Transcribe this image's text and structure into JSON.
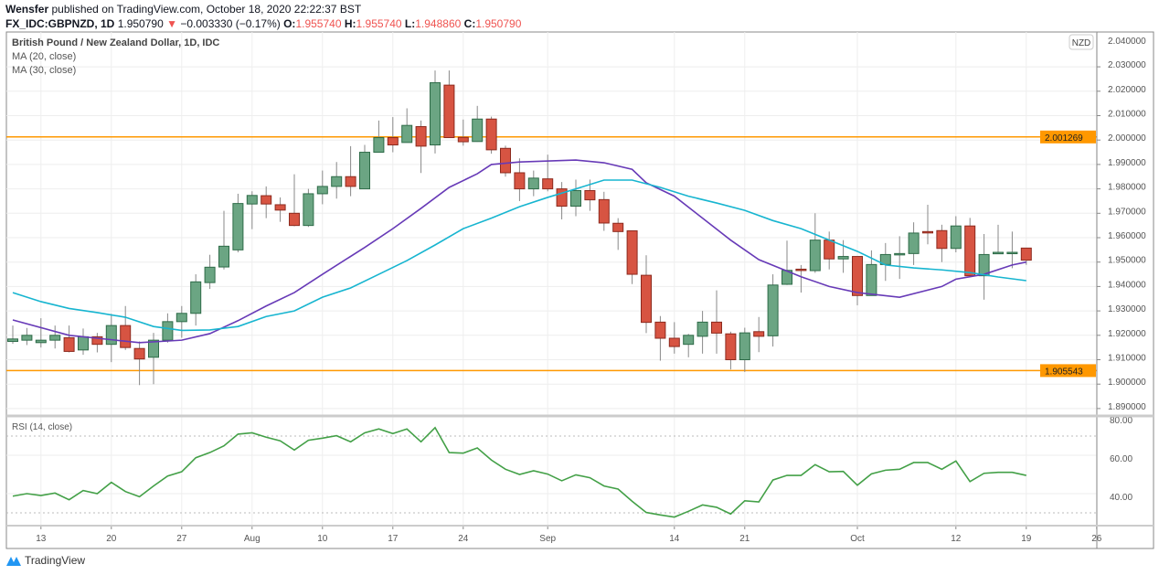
{
  "header": {
    "author": "Wensfer",
    "published": "published on TradingView.com, October 18, 2020 22:22:37 BST",
    "symbol": "FX_IDC:GBPNZD, 1D",
    "last": "1.950790",
    "change": "−0.003330 (−0.17%)",
    "o_label": "O:",
    "o": "1.955740",
    "h_label": "H:",
    "h": "1.955740",
    "l_label": "L:",
    "l": "1.948860",
    "c_label": "C:",
    "c": "1.950790",
    "down_icon": "triangle-down-icon"
  },
  "legend": {
    "title": "British Pound / New Zealand Dollar, 1D, IDC",
    "ma20": "MA (20, close)",
    "ma30": "MA (30, close)",
    "rsi": "RSI (14, close)"
  },
  "currency_badge": "NZD",
  "brand": "TradingView",
  "colors": {
    "up": "#6ba583",
    "down": "#d75442",
    "ma20": "#673ab7",
    "ma30": "#17b5d0",
    "rsi": "#43a047",
    "hline": "#ff9800"
  },
  "chart_data": {
    "type": "candlestick",
    "price_axis": {
      "ticks": [
        "2.030000",
        "2.020000",
        "2.010000",
        "2.000000",
        "1.990000",
        "1.980000",
        "1.970000",
        "1.960000",
        "1.950000",
        "1.940000",
        "1.930000",
        "1.920000",
        "1.910000",
        "1.900000",
        "1.890000"
      ],
      "top_tick": "2.040000"
    },
    "horizontal_lines": [
      {
        "value": 2.001269,
        "label": "2.001269"
      },
      {
        "value": 1.905543,
        "label": "1.905543"
      }
    ],
    "time_axis": [
      {
        "label": "13",
        "date": "07-13"
      },
      {
        "label": "20",
        "date": "07-20"
      },
      {
        "label": "27",
        "date": "07-27"
      },
      {
        "label": "Aug",
        "date": "08-03"
      },
      {
        "label": "10",
        "date": "08-10"
      },
      {
        "label": "17",
        "date": "08-17"
      },
      {
        "label": "24",
        "date": "08-24"
      },
      {
        "label": "Sep",
        "date": "09-01"
      },
      {
        "label": "14",
        "date": "09-14"
      },
      {
        "label": "21",
        "date": "09-21"
      },
      {
        "label": "Oct",
        "date": "10-01"
      },
      {
        "label": "12",
        "date": "10-12"
      },
      {
        "label": "19",
        "date": "10-19"
      },
      {
        "label": "26",
        "date": "10-26"
      }
    ],
    "candles_fields": [
      "date",
      "open",
      "high",
      "low",
      "close"
    ],
    "candles": [
      [
        "07-09",
        1.9175,
        1.924,
        1.9165,
        1.9185
      ],
      [
        "07-10",
        1.918,
        1.923,
        1.916,
        1.92
      ],
      [
        "07-13",
        1.917,
        1.927,
        1.915,
        1.918
      ],
      [
        "07-14",
        1.918,
        1.924,
        1.9146,
        1.92
      ],
      [
        "07-15",
        1.919,
        1.924,
        1.913,
        1.9134
      ],
      [
        "07-16",
        1.914,
        1.9228,
        1.912,
        1.9194
      ],
      [
        "07-17",
        1.9194,
        1.921,
        1.913,
        1.9163
      ],
      [
        "07-20",
        1.9163,
        1.9288,
        1.909,
        1.924
      ],
      [
        "07-21",
        1.924,
        1.932,
        1.914,
        1.915
      ],
      [
        "07-22",
        1.9146,
        1.9175,
        1.8996,
        1.9103
      ],
      [
        "07-23",
        1.911,
        1.921,
        1.9,
        1.918
      ],
      [
        "07-24",
        1.918,
        1.929,
        1.917,
        1.9256
      ],
      [
        "07-27",
        1.9256,
        1.932,
        1.919,
        1.929
      ],
      [
        "07-28",
        1.929,
        1.945,
        1.924,
        1.9419
      ],
      [
        "07-29",
        1.9416,
        1.953,
        1.939,
        1.9479
      ],
      [
        "07-30",
        1.948,
        1.971,
        1.947,
        1.9565
      ],
      [
        "07-31",
        1.955,
        1.978,
        1.954,
        1.974
      ],
      [
        "08-03",
        1.9738,
        1.979,
        1.9635,
        1.9773
      ],
      [
        "08-04",
        1.9772,
        1.981,
        1.968,
        1.9738
      ],
      [
        "08-05",
        1.9735,
        1.9765,
        1.9665,
        1.9713
      ],
      [
        "08-06",
        1.97,
        1.986,
        1.9647,
        1.965
      ],
      [
        "08-07",
        1.965,
        1.98,
        1.9644,
        1.978
      ],
      [
        "08-10",
        1.978,
        1.9875,
        1.9737,
        1.981
      ],
      [
        "08-11",
        1.981,
        1.991,
        1.976,
        1.985
      ],
      [
        "08-12",
        1.985,
        1.9975,
        1.977,
        1.981
      ],
      [
        "08-13",
        1.98,
        1.998,
        1.98,
        1.995
      ],
      [
        "08-14",
        1.995,
        2.008,
        1.995,
        2.001
      ],
      [
        "08-17",
        2.001,
        2.0094,
        1.995,
        1.998
      ],
      [
        "08-18",
        1.999,
        2.013,
        1.999,
        2.006
      ],
      [
        "08-19",
        2.0055,
        2.008,
        1.9865,
        1.9975
      ],
      [
        "08-20",
        1.998,
        2.0285,
        1.9945,
        2.0235
      ],
      [
        "08-21",
        2.0225,
        2.0285,
        2.001,
        2.001
      ],
      [
        "08-24",
        2.0011,
        2.0084,
        1.9977,
        1.9993
      ],
      [
        "08-25",
        1.9994,
        2.014,
        1.9993,
        2.0086
      ],
      [
        "08-26",
        2.0086,
        2.0096,
        1.9944,
        1.996
      ],
      [
        "08-27",
        1.9966,
        1.9977,
        1.985,
        1.9866
      ],
      [
        "08-28",
        1.9866,
        1.9925,
        1.975,
        1.98
      ],
      [
        "08-31",
        1.98,
        1.9875,
        1.977,
        1.9844
      ],
      [
        "09-01",
        1.9841,
        1.994,
        1.979,
        1.98
      ],
      [
        "09-02",
        1.98,
        1.9828,
        1.9675,
        1.9729
      ],
      [
        "09-03",
        1.9729,
        1.9838,
        1.9688,
        1.9793
      ],
      [
        "09-04",
        1.9793,
        1.9838,
        1.971,
        1.9755
      ],
      [
        "09-07",
        1.9756,
        1.9788,
        1.9628,
        1.966
      ],
      [
        "09-08",
        1.9659,
        1.968,
        1.955,
        1.9625
      ],
      [
        "09-09",
        1.9628,
        1.9628,
        1.941,
        1.945
      ],
      [
        "09-10",
        1.9446,
        1.9528,
        1.9209,
        1.9253
      ],
      [
        "09-11",
        1.9254,
        1.9279,
        1.9096,
        1.9188
      ],
      [
        "09-14",
        1.9188,
        1.9254,
        1.9125,
        1.9154
      ],
      [
        "09-15",
        1.9163,
        1.9206,
        1.911,
        1.92
      ],
      [
        "09-16",
        1.9196,
        1.93,
        1.9125,
        1.9254
      ],
      [
        "09-17",
        1.9254,
        1.9384,
        1.9125,
        1.9209
      ],
      [
        "09-18",
        1.9206,
        1.9215,
        1.906,
        1.91
      ],
      [
        "09-21",
        1.91,
        1.9231,
        1.905,
        1.921
      ],
      [
        "09-22",
        1.9215,
        1.9275,
        1.9131,
        1.9196
      ],
      [
        "09-23",
        1.9198,
        1.945,
        1.9154,
        1.9406
      ],
      [
        "09-24",
        1.9409,
        1.9588,
        1.9406,
        1.9466
      ],
      [
        "09-25",
        1.9471,
        1.9488,
        1.9375,
        1.9466
      ],
      [
        "09-28",
        1.9465,
        1.97,
        1.9456,
        1.959
      ],
      [
        "09-29",
        1.959,
        1.9625,
        1.947,
        1.9513
      ],
      [
        "09-30",
        1.9513,
        1.959,
        1.9456,
        1.9523
      ],
      [
        "10-01",
        1.9523,
        1.9523,
        1.9323,
        1.9363
      ],
      [
        "10-02",
        1.9363,
        1.9548,
        1.9363,
        1.949
      ],
      [
        "10-05",
        1.949,
        1.9578,
        1.9423,
        1.9531
      ],
      [
        "10-06",
        1.9531,
        1.9606,
        1.9431,
        1.9535
      ],
      [
        "10-07",
        1.9535,
        1.9663,
        1.9488,
        1.9619
      ],
      [
        "10-08",
        1.9625,
        1.9735,
        1.9573,
        1.9621
      ],
      [
        "10-09",
        1.9629,
        1.9653,
        1.95,
        1.9556
      ],
      [
        "10-12",
        1.9556,
        1.9688,
        1.954,
        1.9648
      ],
      [
        "10-13",
        1.9648,
        1.9681,
        1.9444,
        1.9444
      ],
      [
        "10-14",
        1.9444,
        1.9615,
        1.9346,
        1.9531
      ],
      [
        "10-15",
        1.9534,
        1.9653,
        1.9534,
        1.954
      ],
      [
        "10-16",
        1.9537,
        1.9625,
        1.9475,
        1.954
      ],
      [
        "10-19",
        1.95574,
        1.95574,
        1.94886,
        1.95079
      ]
    ],
    "ma20": [
      [
        "07-09",
        1.9263
      ],
      [
        "07-15",
        1.92
      ],
      [
        "07-22",
        1.917
      ],
      [
        "07-27",
        1.918
      ],
      [
        "07-29",
        1.9207
      ],
      [
        "07-31",
        1.926
      ],
      [
        "08-04",
        1.932
      ],
      [
        "08-06",
        1.9375
      ],
      [
        "08-10",
        1.945
      ],
      [
        "08-13",
        1.956
      ],
      [
        "08-17",
        1.9637
      ],
      [
        "08-19",
        1.972
      ],
      [
        "08-21",
        1.9806
      ],
      [
        "08-25",
        1.9862
      ],
      [
        "08-26",
        1.99
      ],
      [
        "08-28",
        1.991
      ],
      [
        "09-03",
        1.9918
      ],
      [
        "09-07",
        1.9907
      ],
      [
        "09-09",
        1.988
      ],
      [
        "09-10",
        1.9825
      ],
      [
        "09-14",
        1.977
      ],
      [
        "09-16",
        1.968
      ],
      [
        "09-18",
        1.959
      ],
      [
        "09-22",
        1.951
      ],
      [
        "09-25",
        1.944
      ],
      [
        "09-29",
        1.94
      ],
      [
        "10-01",
        1.9375
      ],
      [
        "10-06",
        1.9356
      ],
      [
        "10-09",
        1.94
      ],
      [
        "10-12",
        1.943
      ],
      [
        "10-14",
        1.945
      ],
      [
        "10-16",
        1.9488
      ],
      [
        "10-19",
        1.95
      ]
    ],
    "ma30": [
      [
        "07-09",
        1.9375
      ],
      [
        "07-13",
        1.9338
      ],
      [
        "07-15",
        1.931
      ],
      [
        "07-17",
        1.9293
      ],
      [
        "07-21",
        1.9274
      ],
      [
        "07-23",
        1.9236
      ],
      [
        "07-27",
        1.922
      ],
      [
        "07-29",
        1.9222
      ],
      [
        "07-31",
        1.9236
      ],
      [
        "08-04",
        1.9277
      ],
      [
        "08-06",
        1.93
      ],
      [
        "08-10",
        1.9356
      ],
      [
        "08-12",
        1.9394
      ],
      [
        "08-14",
        1.945
      ],
      [
        "08-18",
        1.9506
      ],
      [
        "08-20",
        1.957
      ],
      [
        "08-24",
        1.9637
      ],
      [
        "08-26",
        1.968
      ],
      [
        "08-28",
        1.9727
      ],
      [
        "09-01",
        1.9765
      ],
      [
        "09-03",
        1.98
      ],
      [
        "09-07",
        1.9836
      ],
      [
        "09-09",
        1.9836
      ],
      [
        "09-11",
        1.9806
      ],
      [
        "09-15",
        1.977
      ],
      [
        "09-17",
        1.9742
      ],
      [
        "09-21",
        1.9712
      ],
      [
        "09-23",
        1.967
      ],
      [
        "09-25",
        1.9637
      ],
      [
        "09-29",
        1.959
      ],
      [
        "10-01",
        1.9544
      ],
      [
        "10-05",
        1.9488
      ],
      [
        "10-07",
        1.9476
      ],
      [
        "10-09",
        1.9468
      ],
      [
        "10-13",
        1.9457
      ],
      [
        "10-15",
        1.9439
      ],
      [
        "10-19",
        1.9424
      ]
    ],
    "rsi": {
      "ticks": [
        "80.00",
        "60.00",
        "40.00"
      ],
      "bands": [
        70,
        30
      ],
      "values": [
        38.7,
        40.0,
        39.0,
        40.3,
        36.8,
        41.6,
        40.0,
        45.9,
        41.1,
        38.4,
        44.0,
        49.2,
        51.4,
        58.7,
        61.4,
        64.9,
        71.0,
        71.7,
        69.4,
        67.5,
        62.7,
        67.8,
        68.9,
        70.2,
        67.0,
        71.7,
        73.7,
        71.3,
        73.7,
        67.0,
        74.4,
        61.4,
        61.1,
        63.8,
        57.5,
        52.7,
        50.0,
        51.9,
        50.2,
        46.7,
        49.8,
        48.3,
        44.0,
        42.4,
        36.0,
        30.2,
        28.9,
        27.8,
        30.8,
        34.1,
        32.9,
        29.4,
        36.3,
        35.7,
        47.1,
        49.5,
        49.5,
        55.1,
        51.4,
        51.6,
        44.4,
        50.3,
        52.2,
        52.7,
        56.2,
        56.2,
        52.7,
        57.0,
        46.3,
        50.6,
        51.1,
        51.1,
        49.5
      ]
    }
  }
}
